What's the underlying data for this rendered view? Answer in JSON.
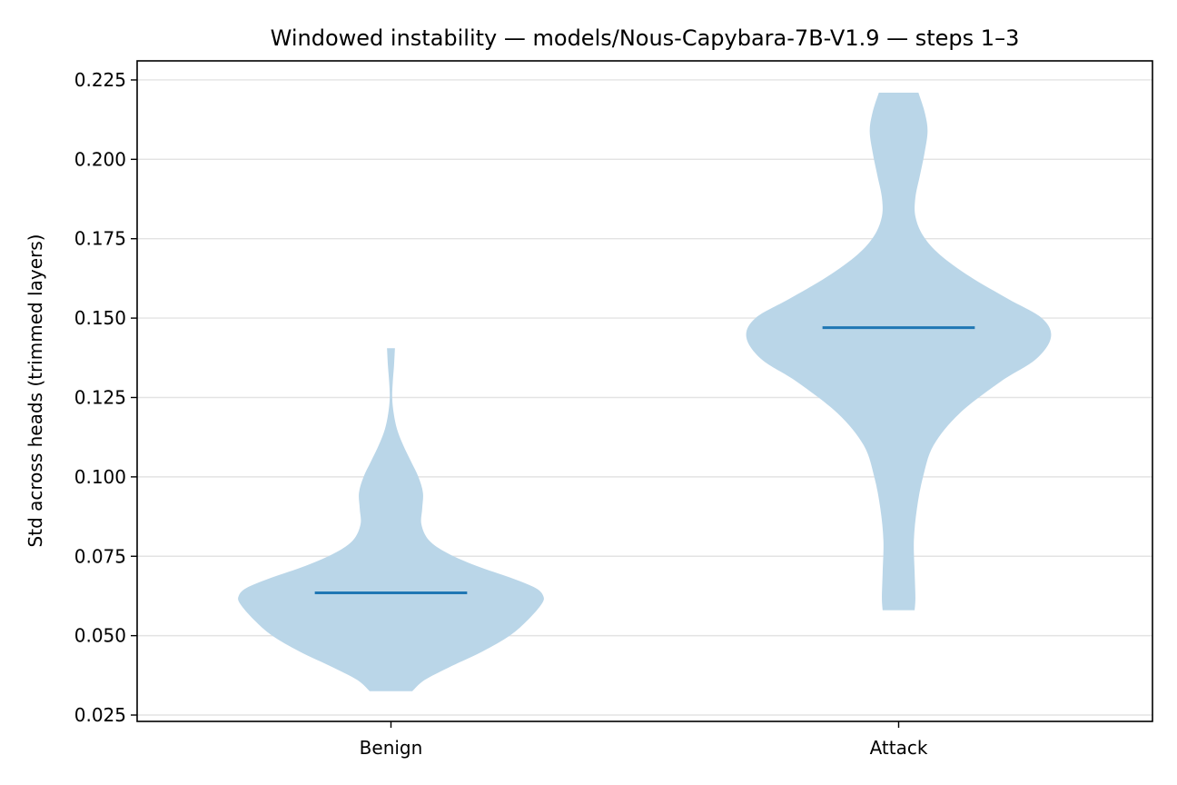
{
  "chart_data": {
    "type": "violin",
    "title": "Windowed instability — models/Nous-Capybara-7B-V1.9 — steps 1–3",
    "xlabel": "",
    "ylabel": "Std across heads (trimmed layers)",
    "categories": [
      "Benign",
      "Attack"
    ],
    "ylim": [
      0.023,
      0.231
    ],
    "yticks": [
      0.025,
      0.05,
      0.075,
      0.1,
      0.125,
      0.15,
      0.175,
      0.2,
      0.225
    ],
    "ytick_labels": [
      "0.025",
      "0.050",
      "0.075",
      "0.100",
      "0.125",
      "0.150",
      "0.175",
      "0.200",
      "0.225"
    ],
    "grid": "y",
    "fill_color": "#bad6e8",
    "median_color": "#1f77b4",
    "series": [
      {
        "category": "Benign",
        "min": 0.0325,
        "max": 0.1405,
        "median": 0.0635,
        "density_profile": [
          {
            "y": 0.0325,
            "half_width": 0.14
          },
          {
            "y": 0.036,
            "half_width": 0.22
          },
          {
            "y": 0.04,
            "half_width": 0.38
          },
          {
            "y": 0.045,
            "half_width": 0.6
          },
          {
            "y": 0.05,
            "half_width": 0.78
          },
          {
            "y": 0.055,
            "half_width": 0.9
          },
          {
            "y": 0.06,
            "half_width": 0.99
          },
          {
            "y": 0.0625,
            "half_width": 1.0
          },
          {
            "y": 0.065,
            "half_width": 0.95
          },
          {
            "y": 0.068,
            "half_width": 0.8
          },
          {
            "y": 0.072,
            "half_width": 0.56
          },
          {
            "y": 0.076,
            "half_width": 0.37
          },
          {
            "y": 0.08,
            "half_width": 0.25
          },
          {
            "y": 0.085,
            "half_width": 0.2
          },
          {
            "y": 0.09,
            "half_width": 0.205
          },
          {
            "y": 0.095,
            "half_width": 0.21
          },
          {
            "y": 0.1,
            "half_width": 0.18
          },
          {
            "y": 0.105,
            "half_width": 0.13
          },
          {
            "y": 0.11,
            "half_width": 0.08
          },
          {
            "y": 0.115,
            "half_width": 0.04
          },
          {
            "y": 0.12,
            "half_width": 0.018
          },
          {
            "y": 0.125,
            "half_width": 0.008
          },
          {
            "y": 0.13,
            "half_width": 0.012
          },
          {
            "y": 0.135,
            "half_width": 0.02
          },
          {
            "y": 0.1405,
            "half_width": 0.026
          }
        ]
      },
      {
        "category": "Attack",
        "min": 0.058,
        "max": 0.221,
        "median": 0.147,
        "density_profile": [
          {
            "y": 0.058,
            "half_width": 0.105
          },
          {
            "y": 0.062,
            "half_width": 0.11
          },
          {
            "y": 0.07,
            "half_width": 0.105
          },
          {
            "y": 0.08,
            "half_width": 0.1
          },
          {
            "y": 0.09,
            "half_width": 0.12
          },
          {
            "y": 0.1,
            "half_width": 0.16
          },
          {
            "y": 0.11,
            "half_width": 0.23
          },
          {
            "y": 0.12,
            "half_width": 0.4
          },
          {
            "y": 0.13,
            "half_width": 0.67
          },
          {
            "y": 0.137,
            "half_width": 0.9
          },
          {
            "y": 0.144,
            "half_width": 1.0
          },
          {
            "y": 0.15,
            "half_width": 0.94
          },
          {
            "y": 0.156,
            "half_width": 0.72
          },
          {
            "y": 0.163,
            "half_width": 0.47
          },
          {
            "y": 0.17,
            "half_width": 0.27
          },
          {
            "y": 0.176,
            "half_width": 0.16
          },
          {
            "y": 0.182,
            "half_width": 0.11
          },
          {
            "y": 0.188,
            "half_width": 0.11
          },
          {
            "y": 0.195,
            "half_width": 0.14
          },
          {
            "y": 0.202,
            "half_width": 0.17
          },
          {
            "y": 0.209,
            "half_width": 0.19
          },
          {
            "y": 0.215,
            "half_width": 0.17
          },
          {
            "y": 0.221,
            "half_width": 0.13
          }
        ]
      }
    ]
  }
}
